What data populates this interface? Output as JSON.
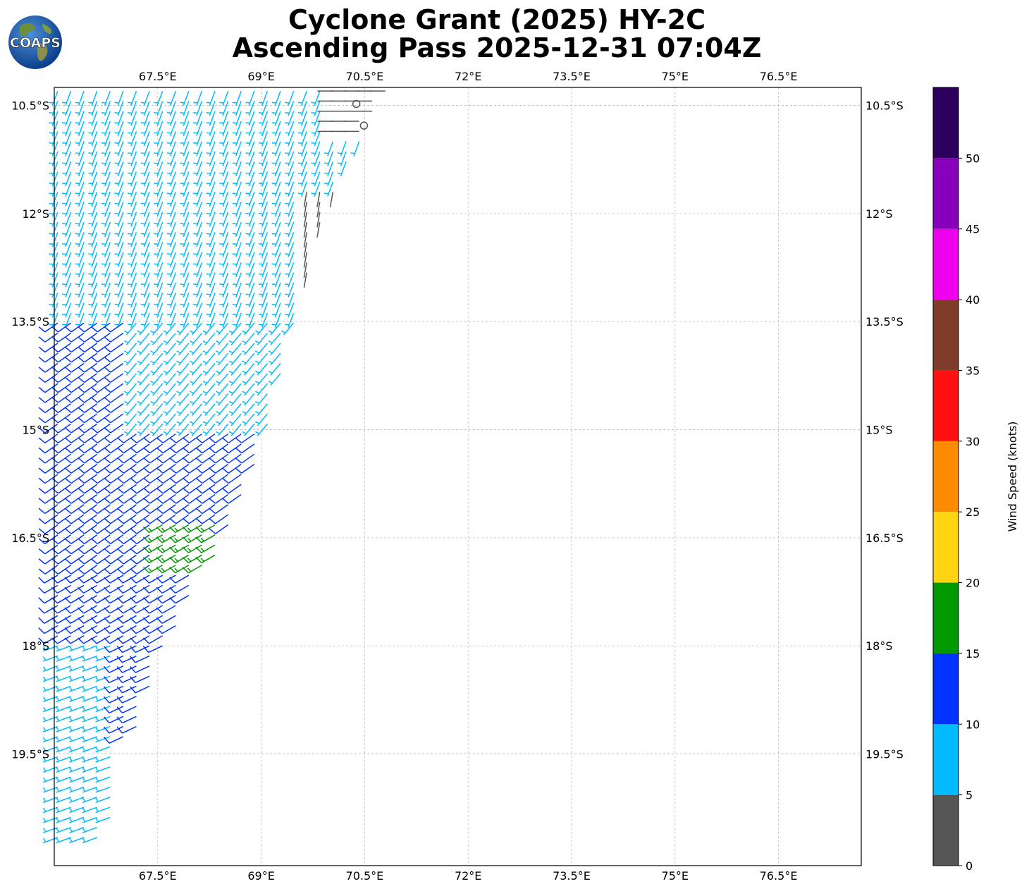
{
  "title_line1": "Cyclone Grant (2025) HY-2C",
  "title_line2": "Ascending Pass 2025-12-31 07:04Z",
  "logo_text": "COAPS",
  "chart_data": {
    "type": "wind_barb_map",
    "xlim": [
      66.0,
      77.7
    ],
    "ylim": [
      -21.05,
      -10.25
    ],
    "x_ticks": [
      67.5,
      69.0,
      70.5,
      72.0,
      73.5,
      75.0,
      76.5
    ],
    "x_tick_labels": [
      "67.5°E",
      "69°E",
      "70.5°E",
      "72°E",
      "73.5°E",
      "75°E",
      "76.5°E"
    ],
    "y_ticks": [
      -10.5,
      -12.0,
      -13.5,
      -15.0,
      -16.5,
      -18.0,
      -19.5
    ],
    "y_tick_labels": [
      "10.5°S",
      "12°S",
      "13.5°S",
      "15°S",
      "16.5°S",
      "18°S",
      "19.5°S"
    ],
    "grid": true,
    "colorbar": {
      "label": "Wind Speed (knots)",
      "ticks": [
        0,
        5,
        10,
        15,
        20,
        25,
        30,
        35,
        40,
        45,
        50
      ],
      "bounds": [
        0,
        5,
        10,
        15,
        20,
        25,
        30,
        35,
        40,
        45,
        50,
        55
      ],
      "colors": [
        "#555555",
        "#00bbff",
        "#0033ff",
        "#009900",
        "#ffd511",
        "#ff8c00",
        "#ff1010",
        "#803b2b",
        "#ee00ee",
        "#8800bb",
        "#2e005e"
      ]
    },
    "swath": {
      "description": "wind barbs over the western part of the map",
      "lat_range": [
        -20.8,
        -10.3
      ],
      "west_edge_lon": 66.0,
      "east_edge": [
        [
          -10.3,
          70.8
        ],
        [
          -12.0,
          69.9
        ],
        [
          -13.5,
          69.5
        ],
        [
          -15.0,
          69.1
        ],
        [
          -16.5,
          68.5
        ],
        [
          -18.0,
          67.6
        ],
        [
          -19.5,
          67.1
        ],
        [
          -20.8,
          66.7
        ]
      ]
    },
    "wind_regions": [
      {
        "lat": [
          -13.5,
          -10.3
        ],
        "lon": [
          66.0,
          70.8
        ],
        "speed": 7,
        "dir_deg": 200
      },
      {
        "lat": [
          -15.8,
          -13.5
        ],
        "lon": [
          66.0,
          69.6
        ],
        "speed": 8,
        "dir_deg": 220
      },
      {
        "lat": [
          -15.0,
          -13.5
        ],
        "lon": [
          66.0,
          67.0
        ],
        "speed": 12,
        "dir_deg": 235
      },
      {
        "lat": [
          -17.0,
          -15.0
        ],
        "lon": [
          66.0,
          69.1
        ],
        "speed": 12,
        "dir_deg": 235
      },
      {
        "lat": [
          -16.9,
          -16.2
        ],
        "lon": [
          67.5,
          68.5
        ],
        "speed": 16,
        "dir_deg": 240
      },
      {
        "lat": [
          -18.5,
          -17.0
        ],
        "lon": [
          66.0,
          68.0
        ],
        "speed": 12,
        "dir_deg": 240
      },
      {
        "lat": [
          -19.3,
          -18.0
        ],
        "lon": [
          66.8,
          67.8
        ],
        "speed": 12,
        "dir_deg": 245
      },
      {
        "lat": [
          -21.0,
          -18.0
        ],
        "lon": [
          66.0,
          66.9
        ],
        "speed": 8,
        "dir_deg": 250
      },
      {
        "lat": [
          -12.9,
          -11.6
        ],
        "lon": [
          69.6,
          70.2
        ],
        "speed": 3,
        "dir_deg": 190
      },
      {
        "lat": [
          -11.0,
          -10.3
        ],
        "lon": [
          70.0,
          70.8
        ],
        "speed": 3,
        "dir_deg": 270
      }
    ],
    "calm_points": [
      [
        70.38,
        -10.48
      ],
      [
        70.49,
        -10.78
      ]
    ]
  }
}
